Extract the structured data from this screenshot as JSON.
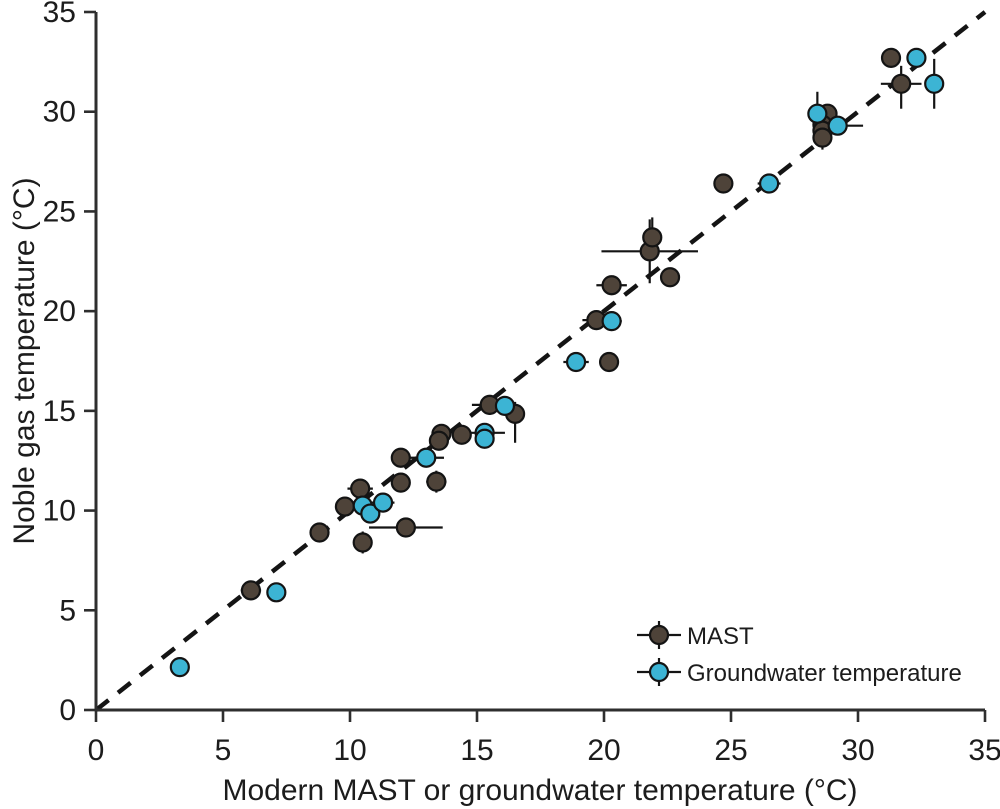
{
  "figure": {
    "background": "#ffffff"
  },
  "colors": {
    "mast_fill": "#4e4339",
    "groundwater_fill": "#3cb4d4",
    "marker_stroke": "#141414",
    "error_bar": "#141414",
    "identity_line": "#141414",
    "axis": "#2e2e2e",
    "text": "#1c1c1c"
  },
  "chart_data": {
    "type": "scatter",
    "title": "",
    "xlabel": "Modern MAST or groundwater temperature (°C)",
    "ylabel": "Noble gas temperature (°C)",
    "xlim": [
      0,
      35
    ],
    "ylim": [
      0,
      35
    ],
    "xticks": [
      0,
      5,
      10,
      15,
      20,
      25,
      30,
      35
    ],
    "yticks": [
      0,
      5,
      10,
      15,
      20,
      25,
      30,
      35
    ],
    "grid": false,
    "legend_position": "lower-right",
    "identity_line": {
      "style": "dashed",
      "from": [
        0,
        0
      ],
      "to": [
        35,
        35
      ]
    },
    "series": [
      {
        "name": "MAST",
        "marker": "circle",
        "fill": "#4e4339",
        "stroke": "#141414",
        "points": [
          {
            "x": 6.1,
            "y": 6.0,
            "ex": 0.4
          },
          {
            "x": 8.8,
            "y": 8.9,
            "ey": 0.5
          },
          {
            "x": 9.8,
            "y": 10.2
          },
          {
            "x": 10.4,
            "y": 11.1,
            "ex": 0.5
          },
          {
            "x": 10.5,
            "y": 8.4,
            "ey": 0.55
          },
          {
            "x": 12.0,
            "y": 12.65
          },
          {
            "x": 12.0,
            "y": 11.4
          },
          {
            "x": 12.2,
            "y": 9.15,
            "ex": 1.45,
            "ey": 0.4
          },
          {
            "x": 13.4,
            "y": 11.45,
            "ex": 0.4,
            "ey": 0.55
          },
          {
            "x": 13.6,
            "y": 13.85
          },
          {
            "x": 13.5,
            "y": 13.5
          },
          {
            "x": 14.4,
            "y": 13.8
          },
          {
            "x": 15.5,
            "y": 15.3,
            "ex": 0.7,
            "ey": 0.5
          },
          {
            "x": 16.5,
            "y": 14.85,
            "ey": [
              1.45,
              0.6
            ]
          },
          {
            "x": 19.7,
            "y": 19.55,
            "ex": 0.55
          },
          {
            "x": 20.2,
            "y": 17.45,
            "ex": 0.3
          },
          {
            "x": 20.3,
            "y": 21.3,
            "ex": 0.6
          },
          {
            "x": 21.8,
            "y": 23.0,
            "ex": 1.9,
            "ey": 1.6
          },
          {
            "x": 21.9,
            "y": 23.7,
            "ey": 1.0
          },
          {
            "x": 22.6,
            "y": 21.7,
            "ex": 0.35
          },
          {
            "x": 24.7,
            "y": 26.4
          },
          {
            "x": 28.8,
            "y": 29.9
          },
          {
            "x": 28.6,
            "y": 29.35
          },
          {
            "x": 28.6,
            "y": 29.05
          },
          {
            "x": 28.6,
            "y": 28.7,
            "ey": [
              0.6,
              0.2
            ]
          },
          {
            "x": 31.3,
            "y": 32.7
          },
          {
            "x": 31.7,
            "y": 31.4,
            "ex": 0.8,
            "ey": [
              1.25,
              0.9
            ]
          }
        ]
      },
      {
        "name": "Groundwater temperature",
        "marker": "circle",
        "fill": "#3cb4d4",
        "stroke": "#141414",
        "points": [
          {
            "x": 3.3,
            "y": 2.15,
            "ex": 0.35
          },
          {
            "x": 7.1,
            "y": 5.9
          },
          {
            "x": 10.5,
            "y": 10.25
          },
          {
            "x": 10.8,
            "y": 9.85,
            "ey": 0.45
          },
          {
            "x": 11.3,
            "y": 10.4,
            "ex": 0.45
          },
          {
            "x": 13.0,
            "y": 12.65,
            "ex": 0.7,
            "ey": 0.4
          },
          {
            "x": 15.3,
            "y": 13.9,
            "ex": 0.8
          },
          {
            "x": 15.3,
            "y": 13.6
          },
          {
            "x": 16.1,
            "y": 15.25
          },
          {
            "x": 18.9,
            "y": 17.45,
            "ex": 0.5
          },
          {
            "x": 20.3,
            "y": 19.5,
            "ex": 0.4,
            "ey": 0.45
          },
          {
            "x": 26.5,
            "y": 26.4,
            "ex": 0.45
          },
          {
            "x": 28.4,
            "y": 29.9,
            "ey": [
              0.4,
              1.1
            ]
          },
          {
            "x": 29.2,
            "y": 29.3,
            "ex": [
              0.4,
              1.0
            ]
          },
          {
            "x": 32.3,
            "y": 32.7
          },
          {
            "x": 33.0,
            "y": 31.4,
            "ey": 1.25
          }
        ]
      }
    ]
  }
}
